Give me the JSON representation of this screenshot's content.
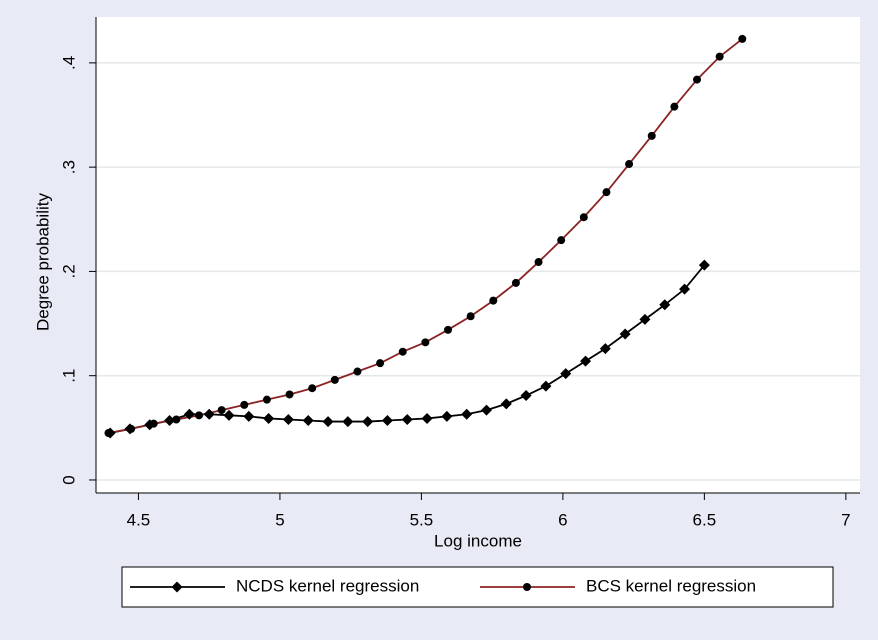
{
  "chart_data": {
    "type": "line",
    "x_label": "Log income",
    "y_label": "Degree probability",
    "xlim": [
      4.35,
      7.05
    ],
    "ylim": [
      -0.0125,
      0.444
    ],
    "xticks": [
      4.5,
      5,
      5.5,
      6,
      6.5,
      7
    ],
    "yticks": [
      {
        "value": 0,
        "label": "0"
      },
      {
        "value": 0.1,
        "label": ".1"
      },
      {
        "value": 0.2,
        "label": ".2"
      },
      {
        "value": 0.3,
        "label": ".3"
      },
      {
        "value": 0.4,
        "label": ".4"
      }
    ],
    "grid": true,
    "legend": "bottom",
    "series": [
      {
        "name": "NCDS kernel regression",
        "color": "#000000",
        "marker": "diamond",
        "marker_color": "#000000",
        "x": [
          4.4,
          4.47,
          4.54,
          4.61,
          4.68,
          4.75,
          4.82,
          4.89,
          4.96,
          5.03,
          5.1,
          5.17,
          5.24,
          5.31,
          5.38,
          5.45,
          5.52,
          5.59,
          5.66,
          5.73,
          5.8,
          5.87,
          5.94,
          6.01,
          6.08,
          6.15,
          6.22,
          6.29,
          6.36,
          6.43,
          6.5
        ],
        "values": [
          0.045,
          0.049,
          0.053,
          0.057,
          0.063,
          0.063,
          0.062,
          0.061,
          0.059,
          0.058,
          0.057,
          0.056,
          0.056,
          0.056,
          0.057,
          0.058,
          0.059,
          0.061,
          0.063,
          0.067,
          0.073,
          0.081,
          0.09,
          0.102,
          0.114,
          0.126,
          0.14,
          0.154,
          0.168,
          0.183,
          0.206
        ]
      },
      {
        "name": "BCS kernel regression",
        "color": "#8b2323",
        "marker": "circle",
        "marker_color": "#000000",
        "x": [
          4.394,
          4.474,
          4.554,
          4.634,
          4.714,
          4.794,
          4.874,
          4.954,
          5.034,
          5.114,
          5.194,
          5.274,
          5.354,
          5.434,
          5.514,
          5.594,
          5.674,
          5.754,
          5.834,
          5.914,
          5.994,
          6.074,
          6.154,
          6.234,
          6.314,
          6.394,
          6.474,
          6.554,
          6.634
        ],
        "values": [
          0.045,
          0.049,
          0.054,
          0.058,
          0.062,
          0.067,
          0.072,
          0.077,
          0.082,
          0.088,
          0.096,
          0.104,
          0.112,
          0.123,
          0.132,
          0.144,
          0.157,
          0.172,
          0.189,
          0.209,
          0.23,
          0.252,
          0.276,
          0.303,
          0.33,
          0.358,
          0.384,
          0.406,
          0.423
        ]
      }
    ]
  }
}
